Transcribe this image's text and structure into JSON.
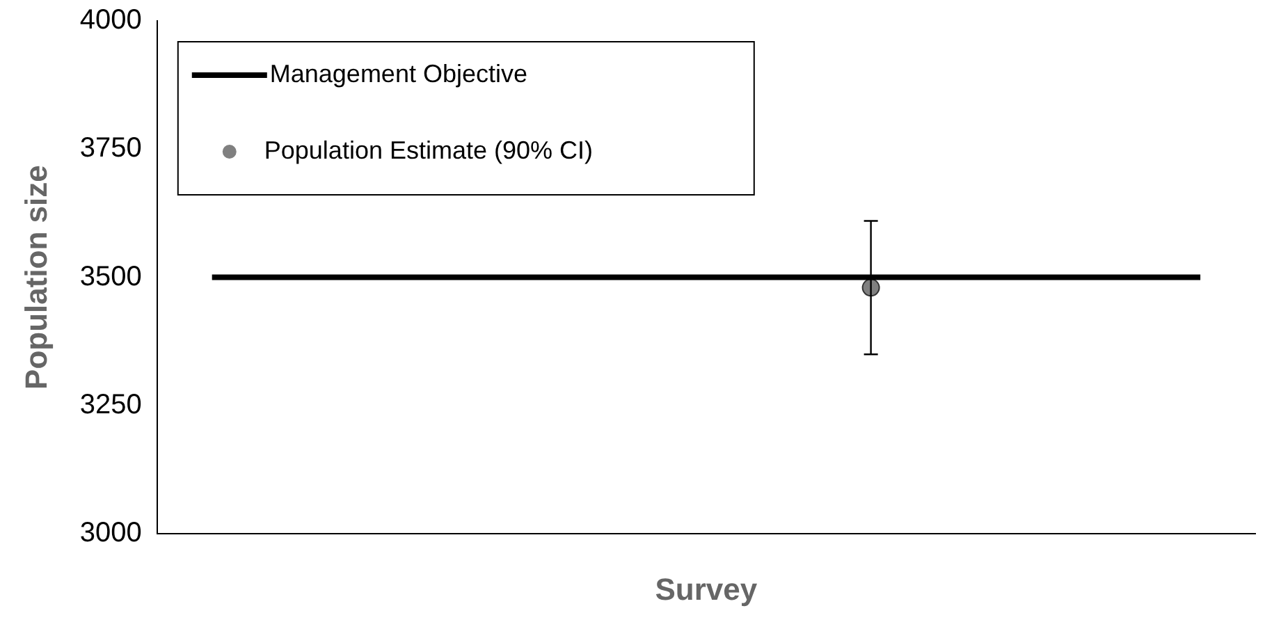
{
  "chart_data": {
    "type": "line",
    "xlabel": "Survey",
    "ylabel": "Population size",
    "categories": [
      null,
      null,
      null,
      null,
      null,
      null,
      null,
      null,
      null,
      null
    ],
    "series": [
      {
        "name": "Management Objective",
        "color": "#000000",
        "values": [
          3500,
          3500,
          3500,
          3500,
          3500,
          3500,
          3500,
          3500,
          3500,
          3500
        ]
      },
      {
        "name": "Population Estimate (90% CI)",
        "type": "scatter",
        "color": "#808080",
        "marker": "circle",
        "values": [
          null,
          null,
          null,
          null,
          null,
          null,
          3480,
          null,
          null,
          null
        ],
        "errors": [
          null,
          null,
          null,
          null,
          null,
          null,
          [
            3350,
            3610
          ],
          null,
          null,
          null
        ]
      }
    ],
    "ylim": [
      3000,
      4000
    ],
    "yticks": [
      3000,
      3250,
      3500,
      3750,
      4000
    ],
    "grid": false,
    "legend": "top left",
    "tick_labels": "y"
  }
}
